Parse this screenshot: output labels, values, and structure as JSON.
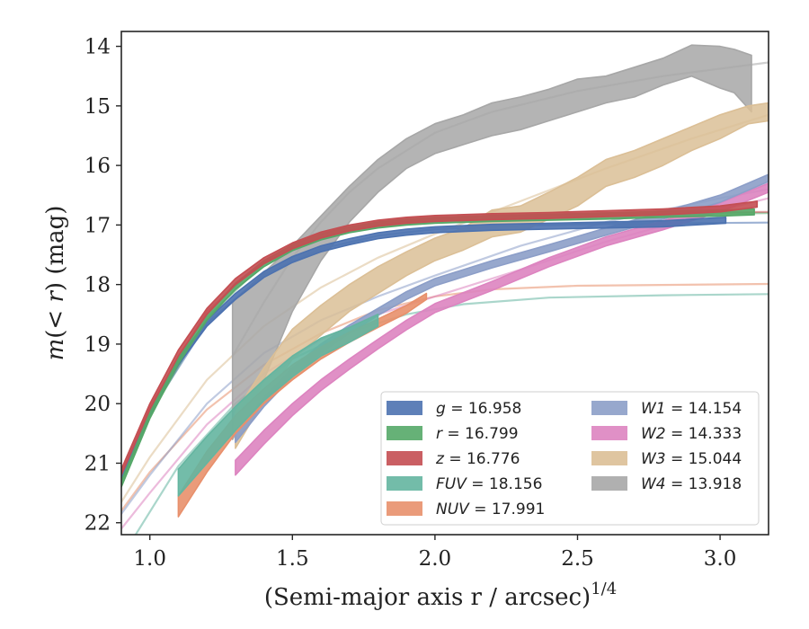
{
  "chart_data": {
    "type": "line",
    "title": "",
    "xlabel": "(Semi-major axis r / arcsec)",
    "xlabel_exponent": "1/4",
    "ylabel": "m(< r) (mag)",
    "xlim": [
      0.9,
      3.17
    ],
    "ylim": [
      22.2,
      13.75
    ],
    "y_inverted": true,
    "x_ticks": [
      1.0,
      1.5,
      2.0,
      2.5,
      3.0
    ],
    "x_tick_labels": [
      "1.0",
      "1.5",
      "2.0",
      "2.5",
      "3.0"
    ],
    "y_ticks": [
      14,
      15,
      16,
      17,
      18,
      19,
      20,
      21,
      22
    ],
    "y_tick_labels": [
      "14",
      "15",
      "16",
      "17",
      "18",
      "19",
      "20",
      "21",
      "22"
    ],
    "grid": false,
    "legend_position": "lower-right",
    "series": [
      {
        "key": "g",
        "name": "g",
        "value": "16.958",
        "color": "#4c72b0",
        "band": [
          [
            0.9,
            21.2,
            21.3
          ],
          [
            1.0,
            20.1,
            20.2
          ],
          [
            1.1,
            19.25,
            19.35
          ],
          [
            1.2,
            18.6,
            18.7
          ],
          [
            1.3,
            18.15,
            18.25
          ],
          [
            1.4,
            17.78,
            17.88
          ],
          [
            1.5,
            17.53,
            17.63
          ],
          [
            1.6,
            17.35,
            17.45
          ],
          [
            1.7,
            17.23,
            17.33
          ],
          [
            1.8,
            17.13,
            17.23
          ],
          [
            1.9,
            17.07,
            17.17
          ],
          [
            2.0,
            17.03,
            17.13
          ],
          [
            2.2,
            16.99,
            17.09
          ],
          [
            2.4,
            16.97,
            17.07
          ],
          [
            2.6,
            16.95,
            17.05
          ],
          [
            2.8,
            16.93,
            17.03
          ],
          [
            3.02,
            16.87,
            16.97
          ]
        ],
        "model": [
          [
            0.9,
            21.25
          ],
          [
            1.0,
            20.15
          ],
          [
            1.2,
            18.65
          ],
          [
            1.4,
            17.83
          ],
          [
            1.6,
            17.4
          ],
          [
            1.8,
            17.18
          ],
          [
            2.0,
            17.07
          ],
          [
            2.3,
            17.01
          ],
          [
            2.6,
            16.98
          ],
          [
            3.17,
            16.96
          ]
        ]
      },
      {
        "key": "r",
        "name": "r",
        "value": "16.799",
        "color": "#55a868",
        "band": [
          [
            0.9,
            21.3,
            21.4
          ],
          [
            1.0,
            20.15,
            20.25
          ],
          [
            1.1,
            19.23,
            19.33
          ],
          [
            1.2,
            18.5,
            18.6
          ],
          [
            1.3,
            17.98,
            18.08
          ],
          [
            1.4,
            17.6,
            17.7
          ],
          [
            1.5,
            17.33,
            17.43
          ],
          [
            1.6,
            17.15,
            17.25
          ],
          [
            1.7,
            17.03,
            17.13
          ],
          [
            1.8,
            16.95,
            17.05
          ],
          [
            1.9,
            16.9,
            17.0
          ],
          [
            2.0,
            16.87,
            16.97
          ],
          [
            2.2,
            16.84,
            16.94
          ],
          [
            2.4,
            16.82,
            16.92
          ],
          [
            2.6,
            16.8,
            16.9
          ],
          [
            2.8,
            16.77,
            16.87
          ],
          [
            3.0,
            16.75,
            16.85
          ],
          [
            3.12,
            16.73,
            16.83
          ]
        ],
        "model": [
          [
            0.9,
            21.35
          ],
          [
            1.0,
            20.2
          ],
          [
            1.2,
            18.55
          ],
          [
            1.4,
            17.65
          ],
          [
            1.6,
            17.2
          ],
          [
            1.8,
            17.0
          ],
          [
            2.0,
            16.91
          ],
          [
            2.3,
            16.85
          ],
          [
            2.6,
            16.82
          ],
          [
            3.17,
            16.8
          ]
        ]
      },
      {
        "key": "z",
        "name": "z",
        "value": "16.776",
        "color": "#c44e52",
        "band": [
          [
            0.9,
            21.1,
            21.2
          ],
          [
            1.0,
            20.0,
            20.1
          ],
          [
            1.1,
            19.1,
            19.2
          ],
          [
            1.2,
            18.4,
            18.5
          ],
          [
            1.3,
            17.9,
            18.0
          ],
          [
            1.4,
            17.55,
            17.65
          ],
          [
            1.5,
            17.3,
            17.4
          ],
          [
            1.6,
            17.12,
            17.22
          ],
          [
            1.7,
            17.0,
            17.1
          ],
          [
            1.8,
            16.92,
            17.02
          ],
          [
            1.9,
            16.87,
            16.97
          ],
          [
            2.0,
            16.84,
            16.94
          ],
          [
            2.2,
            16.81,
            16.91
          ],
          [
            2.4,
            16.79,
            16.89
          ],
          [
            2.6,
            16.76,
            16.86
          ],
          [
            2.8,
            16.73,
            16.83
          ],
          [
            3.0,
            16.68,
            16.78
          ],
          [
            3.13,
            16.6,
            16.7
          ]
        ],
        "model": [
          [
            0.9,
            21.15
          ],
          [
            1.0,
            20.05
          ],
          [
            1.2,
            18.45
          ],
          [
            1.4,
            17.6
          ],
          [
            1.6,
            17.17
          ],
          [
            1.8,
            16.97
          ],
          [
            2.0,
            16.89
          ],
          [
            2.3,
            16.83
          ],
          [
            2.6,
            16.8
          ],
          [
            3.17,
            16.78
          ]
        ]
      },
      {
        "key": "FUV",
        "name": "FUV",
        "value": "18.156",
        "color": "#64b5a0",
        "band": [
          [
            1.1,
            21.1,
            21.55
          ],
          [
            1.2,
            20.55,
            21.0
          ],
          [
            1.3,
            20.05,
            20.45
          ],
          [
            1.4,
            19.6,
            19.95
          ],
          [
            1.5,
            19.2,
            19.55
          ],
          [
            1.6,
            18.9,
            19.2
          ],
          [
            1.7,
            18.72,
            18.97
          ],
          [
            1.8,
            18.5,
            18.7
          ]
        ],
        "model": [
          [
            0.95,
            22.2
          ],
          [
            1.1,
            21.05
          ],
          [
            1.3,
            20.0
          ],
          [
            1.5,
            19.25
          ],
          [
            1.7,
            18.8
          ],
          [
            1.9,
            18.5
          ],
          [
            2.1,
            18.33
          ],
          [
            2.4,
            18.22
          ],
          [
            2.8,
            18.18
          ],
          [
            3.17,
            18.16
          ]
        ]
      },
      {
        "key": "NUV",
        "name": "NUV",
        "value": "17.991",
        "color": "#e8906c",
        "band": [
          [
            1.1,
            21.55,
            21.9
          ],
          [
            1.2,
            20.8,
            21.15
          ],
          [
            1.3,
            20.2,
            20.5
          ],
          [
            1.4,
            19.75,
            20.0
          ],
          [
            1.5,
            19.35,
            19.6
          ],
          [
            1.6,
            19.05,
            19.25
          ],
          [
            1.7,
            18.8,
            18.97
          ],
          [
            1.8,
            18.58,
            18.72
          ],
          [
            1.9,
            18.35,
            18.48
          ],
          [
            1.97,
            18.15,
            18.25
          ]
        ],
        "model": [
          [
            0.9,
            21.8
          ],
          [
            1.0,
            21.15
          ],
          [
            1.2,
            20.1
          ],
          [
            1.4,
            19.35
          ],
          [
            1.6,
            18.82
          ],
          [
            1.8,
            18.43
          ],
          [
            2.0,
            18.2
          ],
          [
            2.2,
            18.08
          ],
          [
            2.5,
            18.02
          ],
          [
            3.17,
            17.99
          ]
        ]
      },
      {
        "key": "W1",
        "name": "W1",
        "value": "14.154",
        "color": "#8c9ec8",
        "band": [
          [
            1.3,
            20.5,
            20.65
          ],
          [
            1.4,
            19.9,
            20.05
          ],
          [
            1.5,
            19.4,
            19.55
          ],
          [
            1.6,
            19.0,
            19.15
          ],
          [
            1.7,
            18.68,
            18.82
          ],
          [
            1.8,
            18.4,
            18.52
          ],
          [
            1.9,
            18.12,
            18.25
          ],
          [
            2.0,
            17.9,
            18.02
          ],
          [
            2.2,
            17.6,
            17.72
          ],
          [
            2.4,
            17.33,
            17.45
          ],
          [
            2.6,
            17.05,
            17.17
          ],
          [
            2.8,
            16.78,
            16.9
          ],
          [
            3.0,
            16.5,
            16.62
          ],
          [
            3.17,
            16.15,
            16.27
          ]
        ],
        "model": [
          [
            0.9,
            21.85
          ],
          [
            1.0,
            21.2
          ],
          [
            1.2,
            20.0
          ],
          [
            1.4,
            19.15
          ],
          [
            1.6,
            18.6
          ],
          [
            1.8,
            18.2
          ],
          [
            2.0,
            17.85
          ],
          [
            2.3,
            17.35
          ],
          [
            2.6,
            16.95
          ],
          [
            3.0,
            16.55
          ],
          [
            3.17,
            16.4
          ]
        ]
      },
      {
        "key": "W2",
        "name": "W2",
        "value": "14.333",
        "color": "#dd84c0",
        "band": [
          [
            1.3,
            20.95,
            21.2
          ],
          [
            1.4,
            20.45,
            20.68
          ],
          [
            1.5,
            20.0,
            20.2
          ],
          [
            1.6,
            19.6,
            19.78
          ],
          [
            1.7,
            19.25,
            19.42
          ],
          [
            1.8,
            18.92,
            19.08
          ],
          [
            1.9,
            18.6,
            18.76
          ],
          [
            2.0,
            18.32,
            18.47
          ],
          [
            2.2,
            17.95,
            18.1
          ],
          [
            2.4,
            17.55,
            17.7
          ],
          [
            2.6,
            17.2,
            17.35
          ],
          [
            2.8,
            16.93,
            17.08
          ],
          [
            3.0,
            16.63,
            16.78
          ],
          [
            3.17,
            16.3,
            16.45
          ]
        ],
        "model": [
          [
            0.9,
            22.1
          ],
          [
            1.0,
            21.5
          ],
          [
            1.2,
            20.35
          ],
          [
            1.4,
            19.5
          ],
          [
            1.6,
            18.92
          ],
          [
            1.8,
            18.5
          ],
          [
            2.0,
            18.2
          ],
          [
            2.3,
            17.75
          ],
          [
            2.6,
            17.28
          ],
          [
            3.0,
            16.75
          ],
          [
            3.17,
            16.55
          ]
        ]
      },
      {
        "key": "W3",
        "name": "W3",
        "value": "15.044",
        "color": "#dbbf96",
        "band": [
          [
            1.3,
            20.15,
            20.75
          ],
          [
            1.4,
            19.4,
            19.95
          ],
          [
            1.5,
            18.75,
            19.25
          ],
          [
            1.6,
            18.35,
            18.85
          ],
          [
            1.7,
            18.0,
            18.45
          ],
          [
            1.8,
            17.7,
            18.15
          ],
          [
            1.9,
            17.45,
            17.85
          ],
          [
            2.0,
            17.22,
            17.6
          ],
          [
            2.1,
            17.05,
            17.42
          ],
          [
            2.2,
            16.75,
            17.2
          ],
          [
            2.3,
            16.68,
            17.12
          ],
          [
            2.4,
            16.45,
            16.9
          ],
          [
            2.5,
            16.2,
            16.68
          ],
          [
            2.6,
            15.9,
            16.35
          ],
          [
            2.7,
            15.75,
            16.2
          ],
          [
            2.8,
            15.55,
            16.0
          ],
          [
            2.9,
            15.35,
            15.75
          ],
          [
            3.0,
            15.15,
            15.55
          ],
          [
            3.1,
            15.0,
            15.3
          ],
          [
            3.17,
            14.95,
            15.25
          ]
        ],
        "model": [
          [
            0.9,
            21.65
          ],
          [
            1.0,
            20.9
          ],
          [
            1.2,
            19.6
          ],
          [
            1.4,
            18.7
          ],
          [
            1.6,
            18.05
          ],
          [
            1.8,
            17.55
          ],
          [
            2.0,
            17.15
          ],
          [
            2.3,
            16.6
          ],
          [
            2.6,
            16.05
          ],
          [
            2.9,
            15.55
          ],
          [
            3.17,
            15.15
          ]
        ]
      },
      {
        "key": "W4",
        "name": "W4",
        "value": "13.918",
        "color": "#a7a7a7",
        "band": [
          [
            1.29,
            18.3,
            20.6
          ],
          [
            1.4,
            17.8,
            19.6
          ],
          [
            1.5,
            17.35,
            18.45
          ],
          [
            1.6,
            16.85,
            17.6
          ],
          [
            1.7,
            16.35,
            16.95
          ],
          [
            1.8,
            15.9,
            16.45
          ],
          [
            1.9,
            15.55,
            16.05
          ],
          [
            2.0,
            15.3,
            15.8
          ],
          [
            2.1,
            15.15,
            15.65
          ],
          [
            2.2,
            14.95,
            15.5
          ],
          [
            2.3,
            14.85,
            15.4
          ],
          [
            2.4,
            14.72,
            15.25
          ],
          [
            2.5,
            14.55,
            15.1
          ],
          [
            2.6,
            14.5,
            14.95
          ],
          [
            2.7,
            14.35,
            14.85
          ],
          [
            2.8,
            14.2,
            14.65
          ],
          [
            2.9,
            13.98,
            14.5
          ],
          [
            3.0,
            14.0,
            14.7
          ],
          [
            3.05,
            14.05,
            14.78
          ],
          [
            3.11,
            14.15,
            15.1
          ]
        ],
        "model": [
          [
            1.29,
            19.2
          ],
          [
            1.4,
            18.3
          ],
          [
            1.5,
            17.55
          ],
          [
            1.6,
            16.95
          ],
          [
            1.7,
            16.45
          ],
          [
            1.8,
            16.05
          ],
          [
            2.0,
            15.45
          ],
          [
            2.2,
            15.1
          ],
          [
            2.5,
            14.75
          ],
          [
            2.8,
            14.5
          ],
          [
            3.17,
            14.27
          ]
        ]
      }
    ]
  }
}
